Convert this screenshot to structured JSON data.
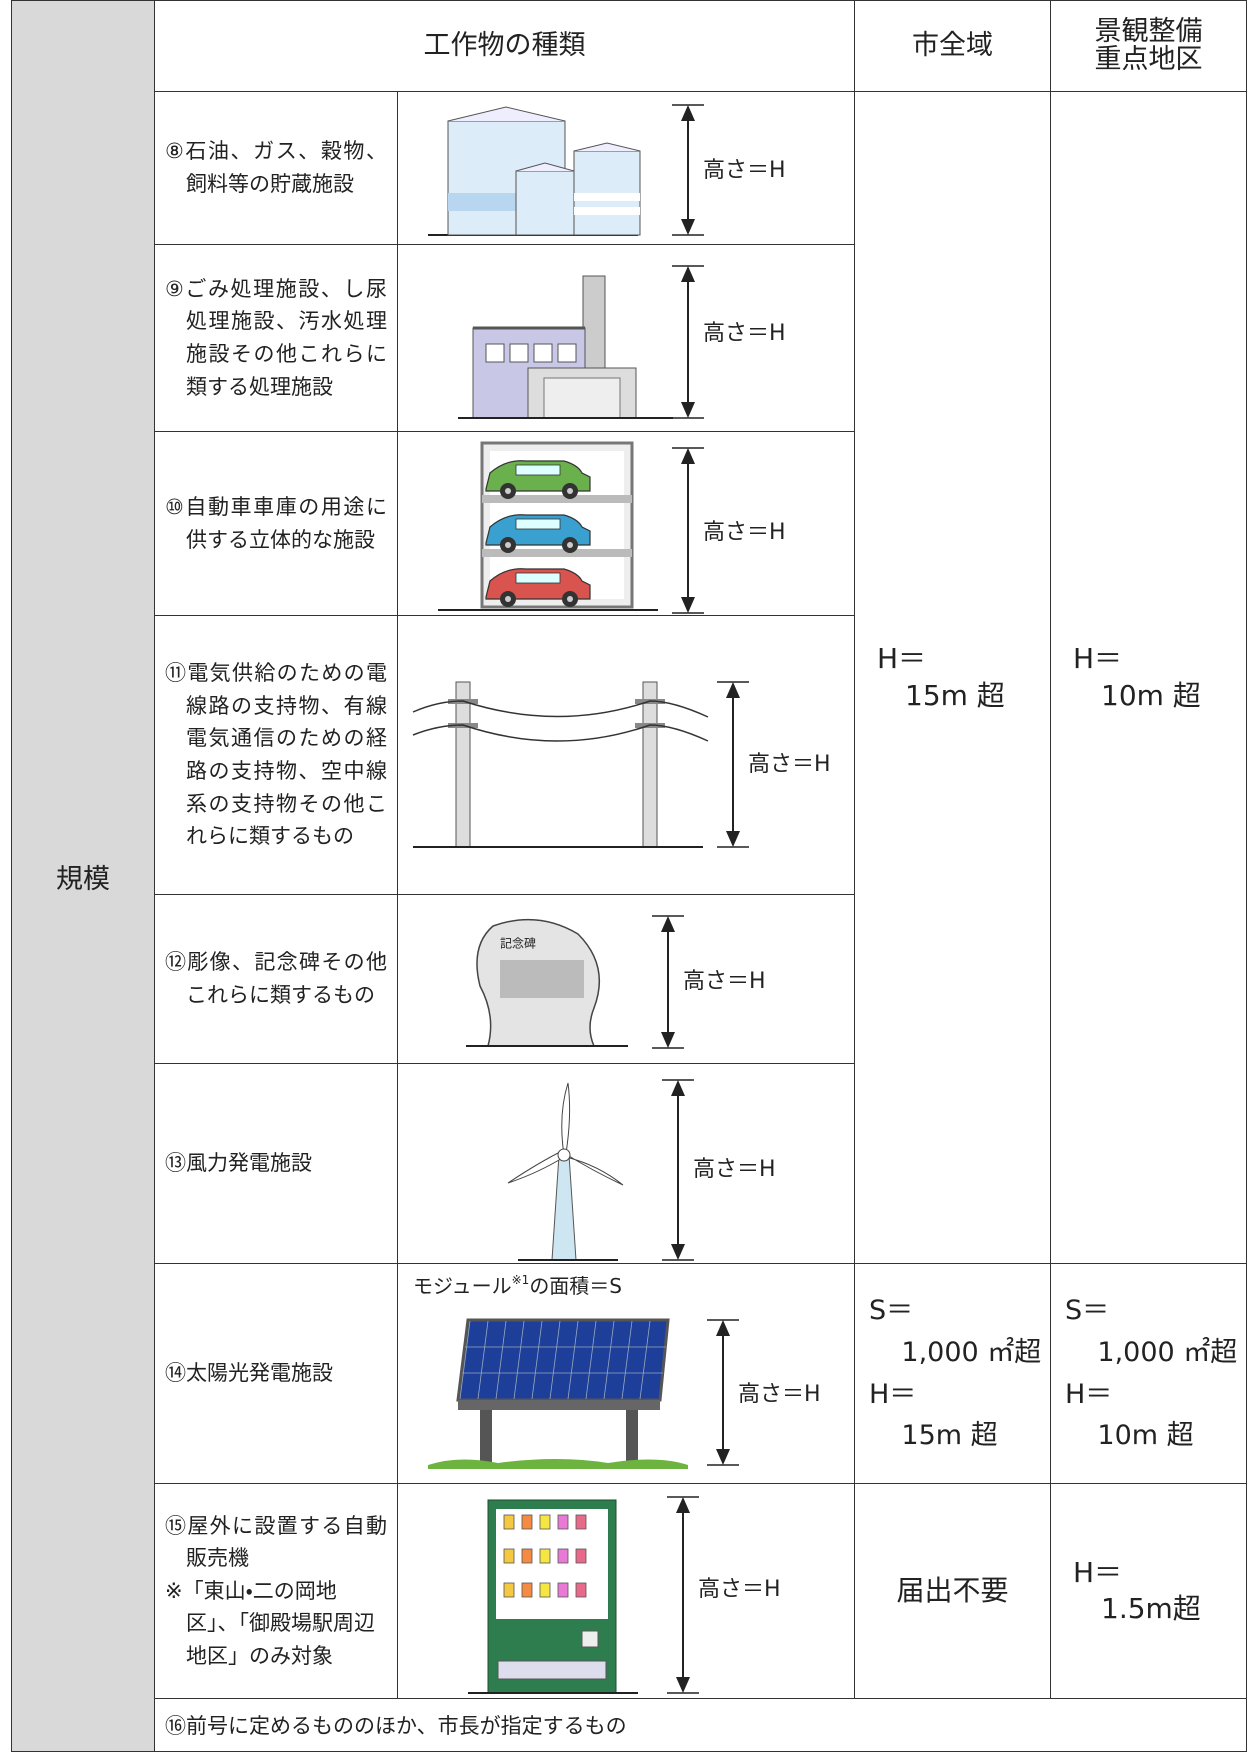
{
  "table": {
    "row_header": "規模",
    "column_headers": [
      [
        "工作物の種類"
      ],
      [
        "市全域"
      ],
      [
        "景観整備",
        "重点地区"
      ]
    ],
    "items": [
      {
        "name": "⑧石油、ガス、穀物、飼料等の貯蔵施設",
        "figure_label": "高さ＝H"
      },
      {
        "name": "⑨ごみ処理施設、し尿処理施設、汚水処理施設その他これらに類する処理施設",
        "figure_label": "高さ＝H"
      },
      {
        "name": "⑩自動車車庫の用途に供する立体的な施設",
        "figure_label": "高さ＝H"
      },
      {
        "name": "⑪電気供給のための電線路の支持物、有線電気通信のための経路の支持物、空中線系の支持物その他これらに類するもの",
        "figure_label": "高さ＝H"
      },
      {
        "name": "⑫彫像、記念碑その他これらに類するもの",
        "figure_label": "高さ＝H"
      },
      {
        "name": "⑬風力発電施設",
        "figure_label": "高さ＝H"
      },
      {
        "name": "⑭太陽光発電施設",
        "figure_label": "高さ＝H",
        "figure_caption": [
          "モジュール",
          "※1",
          "の面積＝S"
        ],
        "city": [
          "S＝",
          "1,000 ㎡超",
          "H＝",
          "15m 超"
        ],
        "district": [
          "S＝",
          "1,000 ㎡超",
          "H＝",
          "10m 超"
        ]
      },
      {
        "name": "⑮屋外に設置する自動販売機",
        "note": "※「東山・二の岡地区」、「御殿場駅周辺地区」のみ対象",
        "figure_label": "高さ＝H",
        "city": [
          "届出不要"
        ],
        "district": [
          "H＝",
          "1.5m超"
        ]
      }
    ],
    "merged_city": [
      "H＝",
      "15m 超"
    ],
    "merged_district": [
      "H＝",
      "10m 超"
    ],
    "footer_item": "⑯前号に定めるもののほか、市長が指定するもの"
  }
}
